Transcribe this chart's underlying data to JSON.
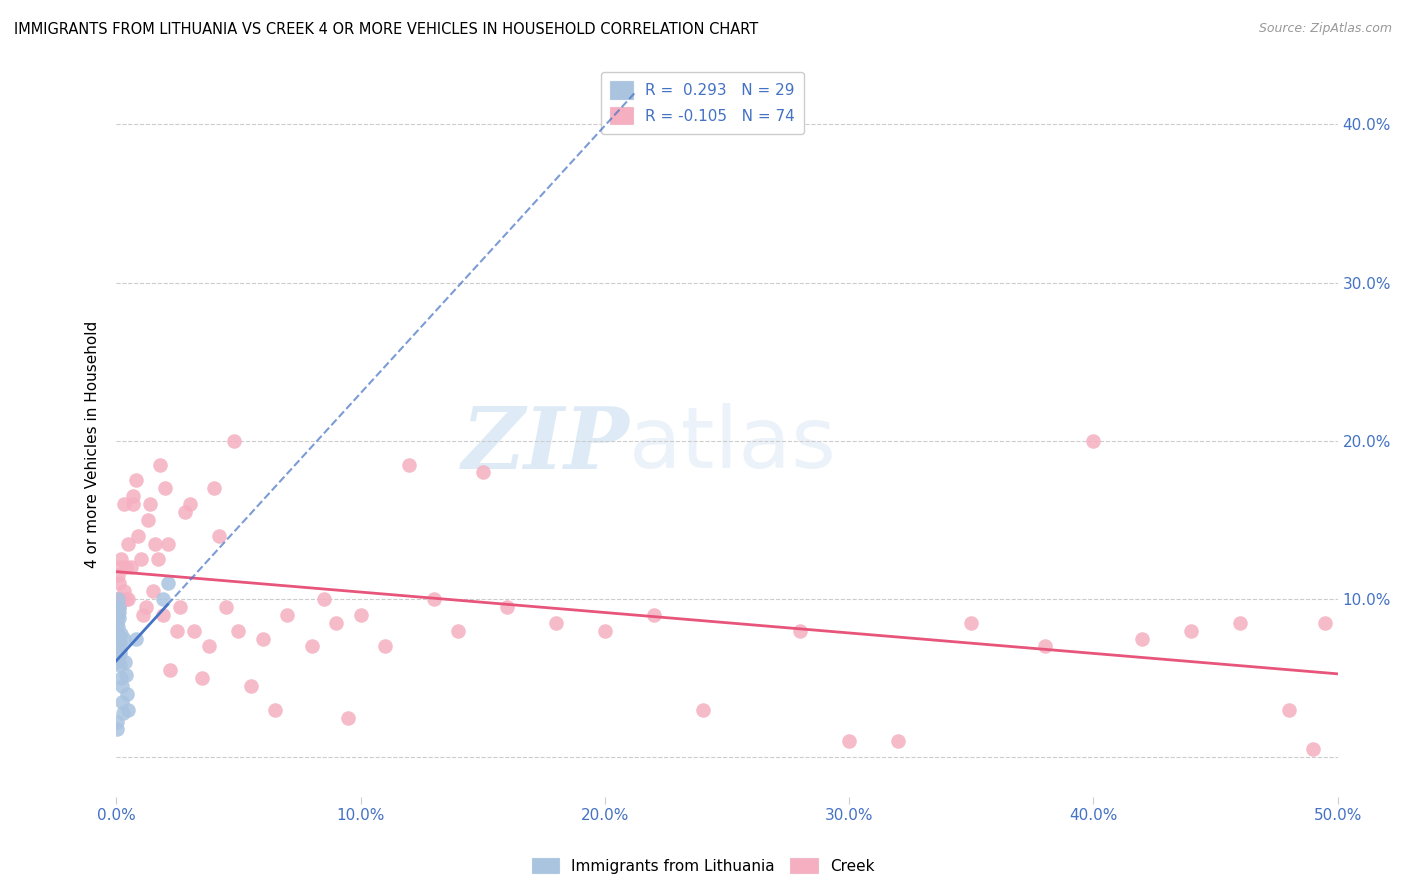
{
  "title": "IMMIGRANTS FROM LITHUANIA VS CREEK 4 OR MORE VEHICLES IN HOUSEHOLD CORRELATION CHART",
  "source": "Source: ZipAtlas.com",
  "ylabel_label": "4 or more Vehicles in Household",
  "xlim": [
    0.0,
    0.5
  ],
  "ylim": [
    -0.025,
    0.42
  ],
  "ytick_vals": [
    0.0,
    0.1,
    0.2,
    0.3,
    0.4
  ],
  "ytick_labels": [
    "",
    "10.0%",
    "20.0%",
    "30.0%",
    "40.0%"
  ],
  "xtick_vals": [
    0.0,
    0.1,
    0.2,
    0.3,
    0.4,
    0.5
  ],
  "xtick_labels": [
    "0.0%",
    "10.0%",
    "20.0%",
    "30.0%",
    "40.0%",
    "50.0%"
  ],
  "legend_row1": "R =  0.293   N = 29",
  "legend_row2": "R = -0.105   N = 74",
  "blue_color": "#aac4e0",
  "pink_color": "#f5afc0",
  "blue_line_color": "#4472c4",
  "pink_line_color": "#e8557a",
  "watermark_zip": "ZIP",
  "watermark_atlas": "atlas",
  "blue_R": 0.293,
  "blue_N": 29,
  "pink_R": -0.105,
  "pink_N": 74,
  "blue_scatter_x": [
    0.0002,
    0.0003,
    0.0004,
    0.0005,
    0.0006,
    0.0007,
    0.0008,
    0.0009,
    0.001,
    0.0011,
    0.0012,
    0.0013,
    0.0014,
    0.0015,
    0.0016,
    0.0017,
    0.0018,
    0.002,
    0.0022,
    0.0025,
    0.0028,
    0.003,
    0.0035,
    0.004,
    0.0045,
    0.005,
    0.008,
    0.019,
    0.021
  ],
  "blue_scatter_y": [
    0.022,
    0.018,
    0.06,
    0.085,
    0.09,
    0.1,
    0.082,
    0.078,
    0.092,
    0.088,
    0.075,
    0.095,
    0.065,
    0.072,
    0.058,
    0.068,
    0.078,
    0.05,
    0.045,
    0.035,
    0.028,
    0.075,
    0.06,
    0.052,
    0.04,
    0.03,
    0.075,
    0.1,
    0.11
  ],
  "pink_scatter_x": [
    0.0005,
    0.0008,
    0.001,
    0.0012,
    0.0015,
    0.002,
    0.002,
    0.003,
    0.003,
    0.004,
    0.004,
    0.005,
    0.005,
    0.006,
    0.007,
    0.007,
    0.008,
    0.009,
    0.01,
    0.011,
    0.012,
    0.013,
    0.014,
    0.015,
    0.016,
    0.017,
    0.018,
    0.019,
    0.02,
    0.021,
    0.022,
    0.025,
    0.026,
    0.028,
    0.03,
    0.032,
    0.035,
    0.038,
    0.04,
    0.042,
    0.045,
    0.048,
    0.05,
    0.055,
    0.06,
    0.065,
    0.07,
    0.08,
    0.085,
    0.09,
    0.095,
    0.1,
    0.11,
    0.12,
    0.13,
    0.14,
    0.15,
    0.16,
    0.18,
    0.2,
    0.22,
    0.24,
    0.28,
    0.3,
    0.32,
    0.35,
    0.38,
    0.4,
    0.42,
    0.44,
    0.46,
    0.48,
    0.49,
    0.495
  ],
  "pink_scatter_y": [
    0.1,
    0.115,
    0.095,
    0.11,
    0.12,
    0.1,
    0.125,
    0.105,
    0.16,
    0.1,
    0.12,
    0.1,
    0.135,
    0.12,
    0.165,
    0.16,
    0.175,
    0.14,
    0.125,
    0.09,
    0.095,
    0.15,
    0.16,
    0.105,
    0.135,
    0.125,
    0.185,
    0.09,
    0.17,
    0.135,
    0.055,
    0.08,
    0.095,
    0.155,
    0.16,
    0.08,
    0.05,
    0.07,
    0.17,
    0.14,
    0.095,
    0.2,
    0.08,
    0.045,
    0.075,
    0.03,
    0.09,
    0.07,
    0.1,
    0.085,
    0.025,
    0.09,
    0.07,
    0.185,
    0.1,
    0.08,
    0.18,
    0.095,
    0.085,
    0.08,
    0.09,
    0.03,
    0.08,
    0.01,
    0.01,
    0.085,
    0.07,
    0.2,
    0.075,
    0.08,
    0.085,
    0.03,
    0.005,
    0.085
  ]
}
